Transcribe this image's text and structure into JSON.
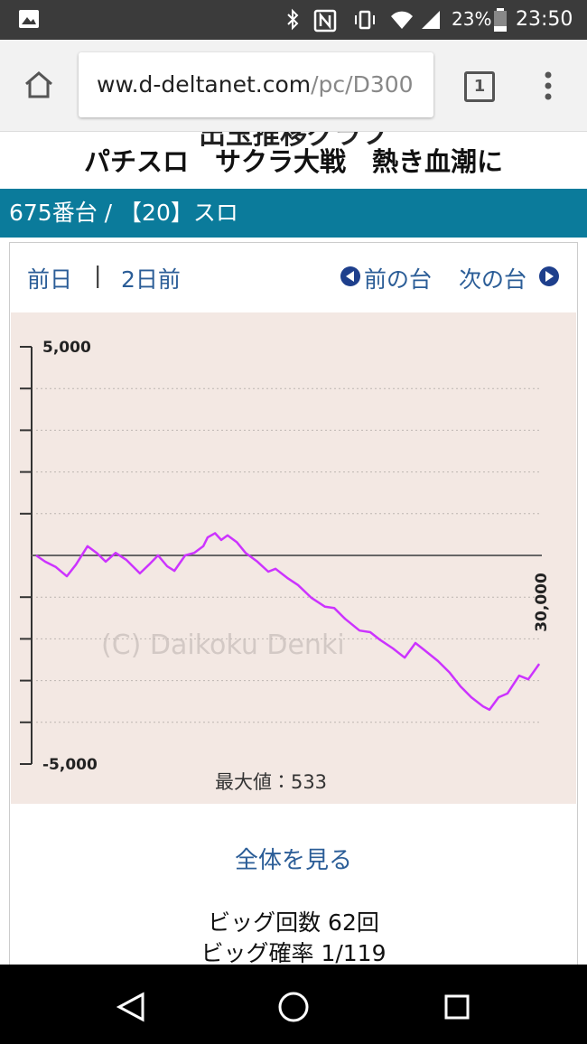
{
  "status_bar": {
    "battery": "23%",
    "time": "23:50"
  },
  "browser": {
    "url_host": "ww.d-deltanet.com",
    "url_path": "/pc/D300",
    "tab_count": "1"
  },
  "page": {
    "heading_cut": "出玉推移グラフ",
    "title": "パチスロ　サクラ大戦　熱き血潮に",
    "machine_bar": "675番台 / 【20】スロ",
    "nav": {
      "prev_day": "前日",
      "separator": "|",
      "two_days_ago": "2日前",
      "prev_machine": "前の台",
      "next_machine": "次の台"
    },
    "view_all": "全体を見る",
    "stats": [
      "ビッグ回数 62回",
      "ビッグ確率 1/119"
    ]
  },
  "chart_data": {
    "type": "line",
    "color": "#cc33ff",
    "watermark": "(C) Daikoku Denki",
    "max_label": "最大値：533",
    "x": [
      0,
      540,
      1180,
      1830,
      2370,
      3060,
      3600,
      4140,
      4730,
      5380,
      6180,
      6720,
      7260,
      7800,
      8230,
      8870,
      9410,
      9950,
      10210,
      10650,
      11020,
      11400,
      11940,
      12470,
      13170,
      13820,
      14250,
      14950,
      15590,
      16400,
      17200,
      17740,
      18390,
      19250,
      19890,
      20430,
      21240,
      21940,
      22580,
      23120,
      23920,
      24620,
      25270,
      25910,
      26610,
      26990,
      27530,
      28060,
      28760,
      29300,
      29950
    ],
    "values": [
      0,
      -150,
      -280,
      -500,
      -220,
      220,
      60,
      -150,
      60,
      -110,
      -430,
      -220,
      0,
      -260,
      -370,
      0,
      60,
      220,
      430,
      533,
      370,
      480,
      320,
      60,
      -150,
      -390,
      -320,
      -540,
      -710,
      -1020,
      -1230,
      -1260,
      -1520,
      -1800,
      -1840,
      -2010,
      -2230,
      -2450,
      -2100,
      -2270,
      -2530,
      -2810,
      -3140,
      -3400,
      -3620,
      -3700,
      -3400,
      -3310,
      -2880,
      -2970,
      -2600
    ],
    "xlim": [
      0,
      30000
    ],
    "xticks": [
      {
        "value": 30000,
        "label": "30,000"
      }
    ],
    "ylim": [
      -5000,
      5000
    ],
    "yticks": [
      {
        "value": 5000,
        "label": "5,000"
      },
      {
        "value": -5000,
        "label": "-5,000"
      }
    ],
    "minor_yticks": [
      4000,
      3000,
      2000,
      1000,
      -1000,
      -2000,
      -3000,
      -4000
    ],
    "baseline": 0,
    "grid": true
  }
}
